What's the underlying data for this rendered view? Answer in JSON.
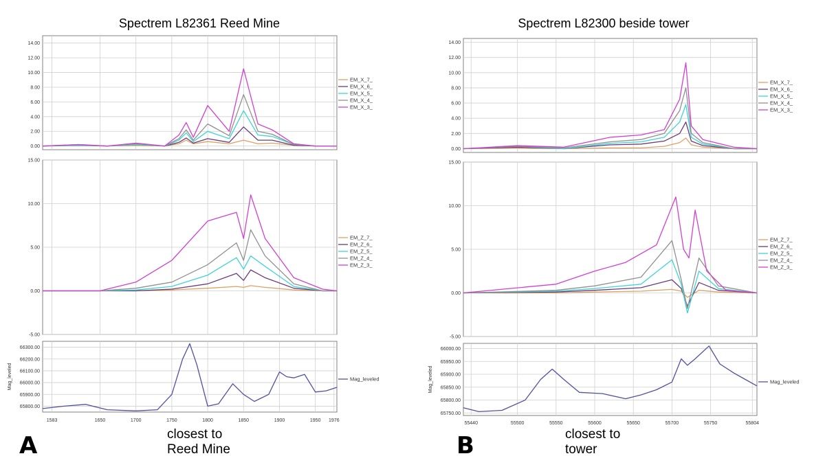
{
  "figure": {
    "panel_letters": [
      "A",
      "B"
    ],
    "annotations": [
      {
        "line1": "closest to",
        "line2": "Reed Mine"
      },
      {
        "line1": "closest to",
        "line2": "tower"
      }
    ]
  },
  "chart_data": [
    {
      "type": "line",
      "title": "Spectrem L82361 Reed Mine",
      "xlabel": "",
      "x_ticks": [
        1583,
        1650,
        1700,
        1750,
        1800,
        1850,
        1900,
        1950,
        1976
      ],
      "xlim": [
        1570,
        1980
      ],
      "grid": true,
      "legend_position": "right",
      "panels": [
        {
          "ylabel": "",
          "ylim": [
            -0.5,
            15
          ],
          "y_ticks": [
            0,
            2,
            4,
            6,
            8,
            10,
            12,
            14
          ],
          "tick_format": "2dp",
          "series": [
            {
              "name": "EM_X_7_",
              "color": "#e0a060",
              "x": [
                1570,
                1620,
                1660,
                1700,
                1740,
                1760,
                1770,
                1780,
                1800,
                1830,
                1850,
                1870,
                1890,
                1920,
                1950,
                1980
              ],
              "y": [
                0,
                0.05,
                0,
                0.1,
                0,
                0.3,
                0.8,
                0.3,
                0.6,
                0.3,
                0.8,
                0.3,
                0.4,
                0.1,
                0,
                0
              ]
            },
            {
              "name": "EM_X_6_",
              "color": "#6a3a7a",
              "x": [
                1570,
                1620,
                1660,
                1700,
                1740,
                1760,
                1770,
                1780,
                1800,
                1830,
                1850,
                1870,
                1890,
                1920,
                1950,
                1980
              ],
              "y": [
                0,
                0.1,
                0,
                0.2,
                0,
                0.5,
                1.1,
                0.4,
                1.0,
                0.5,
                2.6,
                0.8,
                0.8,
                0.1,
                0,
                0
              ]
            },
            {
              "name": "EM_X_5_",
              "color": "#3dd4d4",
              "x": [
                1570,
                1620,
                1660,
                1700,
                1740,
                1760,
                1770,
                1780,
                1800,
                1830,
                1850,
                1870,
                1890,
                1920,
                1950,
                1980
              ],
              "y": [
                0,
                0.1,
                0,
                0.2,
                0,
                0.8,
                1.8,
                0.6,
                2.0,
                1.0,
                4.8,
                1.5,
                1.3,
                0.2,
                0,
                0
              ]
            },
            {
              "name": "EM_X_4_",
              "color": "#909090",
              "x": [
                1570,
                1620,
                1660,
                1700,
                1740,
                1760,
                1770,
                1780,
                1800,
                1830,
                1850,
                1870,
                1890,
                1920,
                1950,
                1980
              ],
              "y": [
                0,
                0.2,
                0,
                0.3,
                0,
                1.0,
                2.2,
                0.8,
                3.0,
                1.4,
                7.0,
                2.0,
                1.6,
                0.2,
                0,
                0
              ]
            },
            {
              "name": "EM_X_3_",
              "color": "#d040d0",
              "x": [
                1570,
                1620,
                1660,
                1700,
                1740,
                1760,
                1770,
                1780,
                1800,
                1830,
                1850,
                1870,
                1890,
                1920,
                1950,
                1980
              ],
              "y": [
                0,
                0.2,
                0,
                0.4,
                0,
                1.5,
                3.2,
                1.2,
                5.5,
                2.0,
                10.5,
                3.0,
                2.2,
                0.3,
                0,
                0
              ]
            }
          ]
        },
        {
          "ylabel": "",
          "ylim": [
            -5,
            15
          ],
          "y_ticks": [
            -5,
            0,
            5,
            10,
            15
          ],
          "tick_format": "2dp",
          "series": [
            {
              "name": "EM_Z_7_",
              "color": "#e0a060",
              "x": [
                1570,
                1650,
                1700,
                1750,
                1800,
                1840,
                1850,
                1860,
                1880,
                1920,
                1960,
                1980
              ],
              "y": [
                0,
                0,
                0,
                0.1,
                0.3,
                0.5,
                0.4,
                0.6,
                0.4,
                0.1,
                0,
                0
              ]
            },
            {
              "name": "EM_Z_6_",
              "color": "#6a3a7a",
              "x": [
                1570,
                1650,
                1700,
                1750,
                1800,
                1840,
                1850,
                1860,
                1880,
                1920,
                1960,
                1980
              ],
              "y": [
                0,
                0,
                0,
                0.2,
                0.8,
                2.0,
                1.2,
                2.4,
                1.5,
                0.3,
                0,
                0
              ]
            },
            {
              "name": "EM_Z_5_",
              "color": "#3dd4d4",
              "x": [
                1570,
                1650,
                1700,
                1750,
                1800,
                1840,
                1850,
                1860,
                1880,
                1920,
                1960,
                1980
              ],
              "y": [
                0,
                0,
                0.1,
                0.5,
                1.8,
                3.8,
                2.5,
                4.0,
                2.8,
                0.5,
                0,
                0
              ]
            },
            {
              "name": "EM_Z_4_",
              "color": "#909090",
              "x": [
                1570,
                1650,
                1700,
                1750,
                1800,
                1840,
                1850,
                1860,
                1880,
                1920,
                1960,
                1980
              ],
              "y": [
                0,
                0,
                0.3,
                1.0,
                3.0,
                5.5,
                3.5,
                7.0,
                4.0,
                0.8,
                0,
                0
              ]
            },
            {
              "name": "EM_Z_3_",
              "color": "#d040d0",
              "x": [
                1570,
                1650,
                1700,
                1750,
                1800,
                1820,
                1840,
                1850,
                1860,
                1880,
                1920,
                1960,
                1980
              ],
              "y": [
                0,
                0,
                1.0,
                3.5,
                8.0,
                8.5,
                9.0,
                6.0,
                11.0,
                6.0,
                1.5,
                0.2,
                0
              ]
            }
          ]
        },
        {
          "ylabel": "Mag_leveled",
          "ylim": [
            65750,
            66350
          ],
          "y_ticks": [
            65800,
            65900,
            66000,
            66100,
            66200,
            66300
          ],
          "tick_format": "2dp",
          "series": [
            {
              "name": "Mag_leveled",
              "color": "#5050a0",
              "x": [
                1570,
                1600,
                1630,
                1660,
                1700,
                1730,
                1750,
                1765,
                1775,
                1785,
                1800,
                1815,
                1835,
                1850,
                1865,
                1885,
                1900,
                1910,
                1920,
                1935,
                1950,
                1965,
                1980
              ],
              "y": [
                65780,
                65800,
                65815,
                65770,
                65760,
                65770,
                65900,
                66200,
                66330,
                66150,
                65800,
                65820,
                65990,
                65900,
                65840,
                65900,
                66090,
                66050,
                66040,
                66070,
                65920,
                65930,
                65960
              ]
            }
          ]
        }
      ]
    },
    {
      "type": "line",
      "title": "Spectrem L82300 beside tower",
      "xlabel": "",
      "x_ticks": [
        55440,
        55500,
        55550,
        55600,
        55650,
        55700,
        55750,
        55804
      ],
      "xlim": [
        55430,
        55810
      ],
      "grid": true,
      "legend_position": "right",
      "panels": [
        {
          "ylabel": "",
          "ylim": [
            -0.5,
            14.5
          ],
          "y_ticks": [
            0,
            2,
            4,
            6,
            8,
            10,
            12,
            14
          ],
          "tick_format": "2dp",
          "series": [
            {
              "name": "EM_X_7_",
              "color": "#e0a060",
              "x": [
                55430,
                55500,
                55560,
                55620,
                55660,
                55690,
                55710,
                55718,
                55725,
                55740,
                55780,
                55810
              ],
              "y": [
                0,
                0.1,
                0,
                0.1,
                0.1,
                0.3,
                0.8,
                1.4,
                0.5,
                0.2,
                0,
                0
              ]
            },
            {
              "name": "EM_X_6_",
              "color": "#6a3a7a",
              "x": [
                55430,
                55500,
                55560,
                55620,
                55660,
                55690,
                55710,
                55718,
                55725,
                55740,
                55780,
                55810
              ],
              "y": [
                0,
                0.2,
                0,
                0.5,
                0.6,
                1.0,
                2.0,
                3.5,
                1.0,
                0.4,
                0,
                0
              ]
            },
            {
              "name": "EM_X_5_",
              "color": "#3dd4d4",
              "x": [
                55430,
                55500,
                55560,
                55620,
                55660,
                55690,
                55710,
                55718,
                55725,
                55740,
                55780,
                55810
              ],
              "y": [
                0,
                0.3,
                0,
                0.7,
                0.9,
                1.5,
                3.5,
                5.8,
                1.5,
                0.6,
                0,
                0
              ]
            },
            {
              "name": "EM_X_4_",
              "color": "#909090",
              "x": [
                55430,
                55500,
                55560,
                55620,
                55660,
                55690,
                55710,
                55718,
                55725,
                55740,
                55780,
                55810
              ],
              "y": [
                0,
                0.3,
                0.1,
                0.9,
                1.2,
                2.0,
                5.0,
                8.0,
                2.0,
                0.8,
                0,
                0
              ]
            },
            {
              "name": "EM_X_3_",
              "color": "#d040d0",
              "x": [
                55430,
                55500,
                55560,
                55620,
                55660,
                55690,
                55710,
                55718,
                55725,
                55740,
                55780,
                55810
              ],
              "y": [
                0,
                0.4,
                0.2,
                1.5,
                1.8,
                2.5,
                6.5,
                11.3,
                3.0,
                1.2,
                0.2,
                0
              ]
            }
          ]
        },
        {
          "ylabel": "",
          "ylim": [
            -5,
            15
          ],
          "y_ticks": [
            -5,
            0,
            5,
            10,
            15
          ],
          "tick_format": "2dp",
          "series": [
            {
              "name": "EM_Z_7_",
              "color": "#e0a060",
              "x": [
                55430,
                55550,
                55600,
                55660,
                55700,
                55712,
                55720,
                55735,
                55760,
                55810
              ],
              "y": [
                0,
                0,
                0.1,
                0.2,
                0.4,
                0.2,
                -0.5,
                0.3,
                0.1,
                0
              ]
            },
            {
              "name": "EM_Z_6_",
              "color": "#6a3a7a",
              "x": [
                55430,
                55550,
                55600,
                55660,
                55700,
                55712,
                55720,
                55735,
                55760,
                55810
              ],
              "y": [
                0,
                0.1,
                0.3,
                0.6,
                1.5,
                0.5,
                -1.5,
                1.2,
                0.3,
                0
              ]
            },
            {
              "name": "EM_Z_5_",
              "color": "#3dd4d4",
              "x": [
                55430,
                55550,
                55600,
                55660,
                55700,
                55712,
                55720,
                55735,
                55760,
                55810
              ],
              "y": [
                0,
                0.2,
                0.5,
                1.0,
                3.8,
                1.0,
                -2.3,
                2.5,
                0.5,
                0
              ]
            },
            {
              "name": "EM_Z_4_",
              "color": "#909090",
              "x": [
                55430,
                55550,
                55600,
                55660,
                55700,
                55712,
                55720,
                55735,
                55760,
                55810
              ],
              "y": [
                0,
                0.3,
                0.8,
                1.8,
                6.0,
                1.5,
                -1.8,
                4.0,
                0.8,
                0
              ]
            },
            {
              "name": "EM_Z_3_",
              "color": "#d040d0",
              "x": [
                55430,
                55550,
                55600,
                55640,
                55680,
                55705,
                55715,
                55722,
                55730,
                55745,
                55770,
                55810
              ],
              "y": [
                0,
                1.0,
                2.5,
                3.5,
                5.5,
                11.0,
                5.0,
                4.0,
                9.5,
                2.5,
                0.3,
                0
              ]
            }
          ]
        },
        {
          "ylabel": "Mag_leveled",
          "ylim": [
            65740,
            66020
          ],
          "y_ticks": [
            65750,
            65800,
            65850,
            65900,
            65950,
            66000
          ],
          "tick_format": "2dp",
          "series": [
            {
              "name": "Mag_leveled",
              "color": "#5050a0",
              "x": [
                55430,
                55450,
                55480,
                55510,
                55530,
                55545,
                55560,
                55580,
                55610,
                55640,
                55660,
                55680,
                55700,
                55712,
                55720,
                55730,
                55748,
                55762,
                55780,
                55795,
                55810
              ],
              "y": [
                65770,
                65755,
                65760,
                65800,
                65880,
                65920,
                65880,
                65830,
                65825,
                65805,
                65820,
                65840,
                65870,
                65960,
                65935,
                65960,
                66010,
                65940,
                65905,
                65880,
                65855
              ]
            }
          ]
        }
      ]
    }
  ]
}
